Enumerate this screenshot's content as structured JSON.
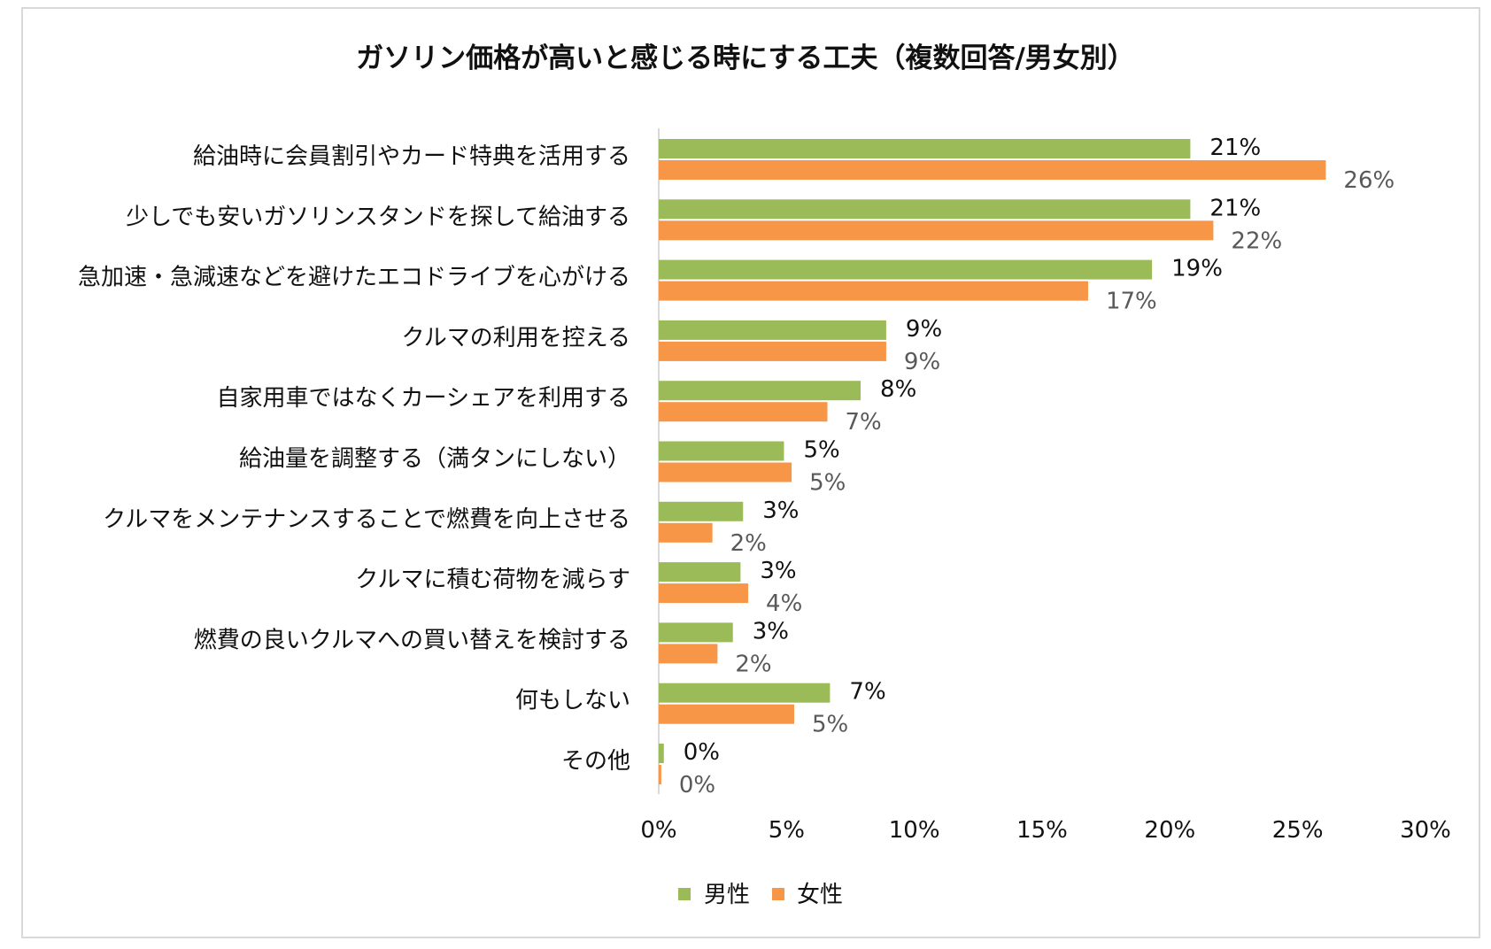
{
  "chart_data": {
    "type": "bar",
    "orientation": "horizontal",
    "title": "ガソリン価格が高いと感じる時にする工夫（複数回答/男女別）",
    "categories": [
      "給油時に会員割引やカード特典を活用する",
      "少しでも安いガソリンスタンドを探して給油する",
      "急加速・急減速などを避けたエコドライブを心がける",
      "クルマの利用を控える",
      "自家用車ではなくカーシェアを利用する",
      "給油量を調整する（満タンにしない）",
      "クルマをメンテナンスすることで燃費を向上させる",
      "クルマに積む荷物を減らす",
      "燃費の良いクルマへの買い替えを検討する",
      "何もしない",
      "その他"
    ],
    "series": [
      {
        "name": "男性",
        "color": "#9bbb59",
        "values": [
          20.8,
          20.8,
          19.3,
          8.9,
          7.9,
          4.9,
          3.3,
          3.2,
          2.9,
          6.7,
          0.2
        ],
        "labels": [
          "21%",
          "21%",
          "19%",
          "9%",
          "8%",
          "5%",
          "3%",
          "3%",
          "3%",
          "7%",
          "0%"
        ]
      },
      {
        "name": "女性",
        "color": "#f79646",
        "values": [
          26.1,
          21.7,
          16.8,
          8.9,
          6.6,
          5.2,
          2.1,
          3.5,
          2.3,
          5.3,
          0.1
        ],
        "labels": [
          "26%",
          "22%",
          "17%",
          "9%",
          "7%",
          "5%",
          "2%",
          "4%",
          "2%",
          "5%",
          "0%"
        ]
      }
    ],
    "xlim": [
      0,
      30
    ],
    "xticks": [
      "0%",
      "5%",
      "10%",
      "15%",
      "20%",
      "25%",
      "30%"
    ],
    "grid": false,
    "legend_position": "bottom"
  }
}
